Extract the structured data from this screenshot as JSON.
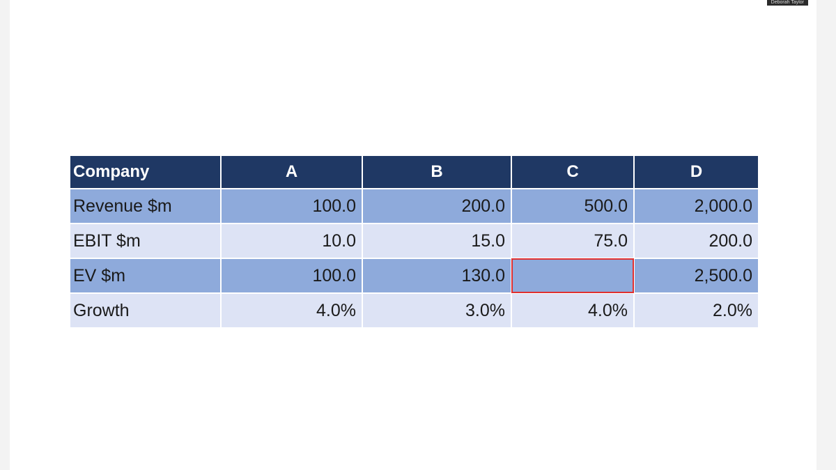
{
  "presenter": "Deborah Taylor",
  "table": {
    "header": [
      "Company",
      "A",
      "B",
      "C",
      "D"
    ],
    "rows": [
      [
        "Revenue $m",
        "100.0",
        "200.0",
        "500.0",
        "2,000.0"
      ],
      [
        "EBIT $m",
        "10.0",
        "15.0",
        "75.0",
        "200.0"
      ],
      [
        "EV $m",
        "100.0",
        "130.0",
        null,
        "2,500.0"
      ],
      [
        "Growth",
        "4.0%",
        "3.0%",
        "4.0%",
        "2.0%"
      ]
    ]
  }
}
